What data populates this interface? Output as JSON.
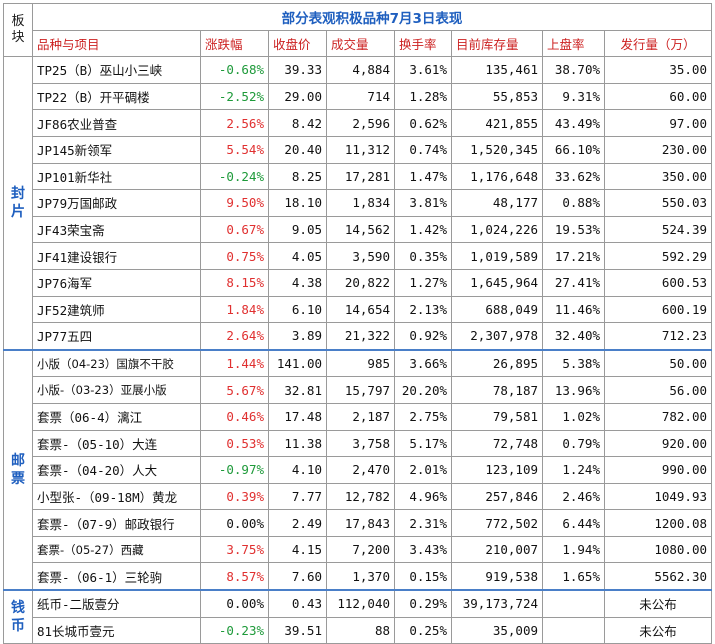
{
  "title": "部分表观积极品种7月3日表现",
  "side_caption": "板块",
  "headers": [
    "品种与项目",
    "涨跌幅",
    "收盘价",
    "成交量",
    "换手率",
    "目前库存量",
    "上盘率",
    "发行量（万）"
  ],
  "groups": [
    {
      "category": "封片",
      "rows": [
        {
          "name": "TP25（B）巫山小三峡",
          "change": "-0.68%",
          "dir": "neg",
          "close": "39.33",
          "volume": "4,884",
          "turnover": "3.61%",
          "stock": "135,461",
          "listing": "38.70%",
          "issue": "35.00"
        },
        {
          "name": "TP22（B）开平碉楼",
          "change": "-2.52%",
          "dir": "neg",
          "close": "29.00",
          "volume": "714",
          "turnover": "1.28%",
          "stock": "55,853",
          "listing": "9.31%",
          "issue": "60.00"
        },
        {
          "name": "JF86农业普查",
          "change": "2.56%",
          "dir": "pos",
          "close": "8.42",
          "volume": "2,596",
          "turnover": "0.62%",
          "stock": "421,855",
          "listing": "43.49%",
          "issue": "97.00"
        },
        {
          "name": "JP145新领军",
          "change": "5.54%",
          "dir": "pos",
          "close": "20.40",
          "volume": "11,312",
          "turnover": "0.74%",
          "stock": "1,520,345",
          "listing": "66.10%",
          "issue": "230.00"
        },
        {
          "name": "JP101新华社",
          "change": "-0.24%",
          "dir": "neg",
          "close": "8.25",
          "volume": "17,281",
          "turnover": "1.47%",
          "stock": "1,176,648",
          "listing": "33.62%",
          "issue": "350.00"
        },
        {
          "name": "JP79万国邮政",
          "change": "9.50%",
          "dir": "pos",
          "close": "18.10",
          "volume": "1,834",
          "turnover": "3.81%",
          "stock": "48,177",
          "listing": "0.88%",
          "issue": "550.03"
        },
        {
          "name": "JF43荣宝斋",
          "change": "0.67%",
          "dir": "pos",
          "close": "9.05",
          "volume": "14,562",
          "turnover": "1.42%",
          "stock": "1,024,226",
          "listing": "19.53%",
          "issue": "524.39"
        },
        {
          "name": "JF41建设银行",
          "change": "0.75%",
          "dir": "pos",
          "close": "4.05",
          "volume": "3,590",
          "turnover": "0.35%",
          "stock": "1,019,589",
          "listing": "17.21%",
          "issue": "592.29"
        },
        {
          "name": "JP76海军",
          "change": "8.15%",
          "dir": "pos",
          "close": "4.38",
          "volume": "20,822",
          "turnover": "1.27%",
          "stock": "1,645,964",
          "listing": "27.41%",
          "issue": "600.53"
        },
        {
          "name": "JF52建筑师",
          "change": "1.84%",
          "dir": "pos",
          "close": "6.10",
          "volume": "14,654",
          "turnover": "2.13%",
          "stock": "688,049",
          "listing": "11.46%",
          "issue": "600.19"
        },
        {
          "name": "JP77五四",
          "change": "2.64%",
          "dir": "pos",
          "close": "3.89",
          "volume": "21,322",
          "turnover": "0.92%",
          "stock": "2,307,978",
          "listing": "32.40%",
          "issue": "712.23"
        }
      ]
    },
    {
      "category": "邮票",
      "rows": [
        {
          "name": "小版（04-23）国旗不干胶",
          "change": "1.44%",
          "dir": "pos",
          "close": "141.00",
          "volume": "985",
          "turnover": "3.66%",
          "stock": "26,895",
          "listing": "5.38%",
          "issue": "50.00",
          "small": true
        },
        {
          "name": "小版-（03-23）亚展小版",
          "change": "5.67%",
          "dir": "pos",
          "close": "32.81",
          "volume": "15,797",
          "turnover": "20.20%",
          "stock": "78,187",
          "listing": "13.96%",
          "issue": "56.00",
          "small": true
        },
        {
          "name": "套票（06-4）漓江",
          "change": "0.46%",
          "dir": "pos",
          "close": "17.48",
          "volume": "2,187",
          "turnover": "2.75%",
          "stock": "79,581",
          "listing": "1.02%",
          "issue": "782.00"
        },
        {
          "name": "套票-（05-10）大连",
          "change": "0.53%",
          "dir": "pos",
          "close": "11.38",
          "volume": "3,758",
          "turnover": "5.17%",
          "stock": "72,748",
          "listing": "0.79%",
          "issue": "920.00"
        },
        {
          "name": "套票-（04-20）人大",
          "change": "-0.97%",
          "dir": "neg",
          "close": "4.10",
          "volume": "2,470",
          "turnover": "2.01%",
          "stock": "123,109",
          "listing": "1.24%",
          "issue": "990.00"
        },
        {
          "name": "小型张-（09-18M）黄龙",
          "change": "0.39%",
          "dir": "pos",
          "close": "7.77",
          "volume": "12,782",
          "turnover": "4.96%",
          "stock": "257,846",
          "listing": "2.46%",
          "issue": "1049.93"
        },
        {
          "name": "套票-（07-9）邮政银行",
          "change": "0.00%",
          "dir": "zero",
          "close": "2.49",
          "volume": "17,843",
          "turnover": "2.31%",
          "stock": "772,502",
          "listing": "6.44%",
          "issue": "1200.08"
        },
        {
          "name": "套票-（05-27）西藏",
          "change": "3.75%",
          "dir": "pos",
          "close": "4.15",
          "volume": "7,200",
          "turnover": "3.43%",
          "stock": "210,007",
          "listing": "1.94%",
          "issue": "1080.00",
          "small": true
        },
        {
          "name": "套票-（06-1）三轮驹",
          "change": "8.57%",
          "dir": "pos",
          "close": "7.60",
          "volume": "1,370",
          "turnover": "0.15%",
          "stock": "919,538",
          "listing": "1.65%",
          "issue": "5562.30"
        }
      ]
    },
    {
      "category": "钱币",
      "rows": [
        {
          "name": "纸币-二版壹分",
          "change": "0.00%",
          "dir": "zero",
          "close": "0.43",
          "volume": "112,040",
          "turnover": "0.29%",
          "stock": "39,173,724",
          "listing": "",
          "issue": "未公布",
          "issue_center": true
        },
        {
          "name": "81长城币壹元",
          "change": "-0.23%",
          "dir": "neg",
          "close": "39.51",
          "volume": "88",
          "turnover": "0.25%",
          "stock": "35,009",
          "listing": "",
          "issue": "未公布",
          "issue_center": true
        }
      ]
    }
  ]
}
